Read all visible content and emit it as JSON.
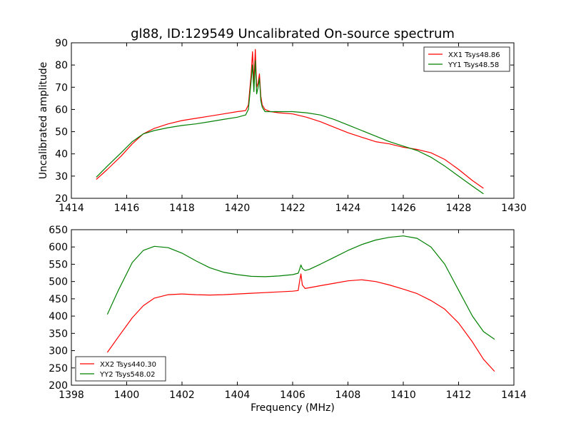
{
  "page_title": "gl88, ID:129549 Uncalibrated On-source spectrum",
  "chart_data": [
    {
      "type": "line",
      "title": "gl88, ID:129549 Uncalibrated On-source spectrum",
      "xlabel": "",
      "ylabel": "Uncalibrated amplitude",
      "xlim": [
        1414,
        1430
      ],
      "ylim": [
        20,
        90
      ],
      "xticks": [
        "1414",
        "1416",
        "1418",
        "1420",
        "1422",
        "1424",
        "1426",
        "1428",
        "1430"
      ],
      "yticks": [
        "20",
        "30",
        "40",
        "50",
        "60",
        "70",
        "80",
        "90"
      ],
      "grid": false,
      "legend_position": "top-right",
      "series": [
        {
          "name": "XX1 Tsys48.86",
          "color": "#ff0000",
          "x": [
            1414.9,
            1415.3,
            1415.8,
            1416.2,
            1416.6,
            1417.0,
            1417.5,
            1418.0,
            1418.5,
            1419.0,
            1419.5,
            1420.0,
            1420.3,
            1420.4,
            1420.5,
            1420.55,
            1420.6,
            1420.65,
            1420.7,
            1420.75,
            1420.8,
            1420.85,
            1420.9,
            1421.0,
            1421.2,
            1421.5,
            1422.0,
            1422.5,
            1423.0,
            1423.5,
            1424.0,
            1424.5,
            1425.0,
            1425.5,
            1426.0,
            1426.5,
            1427.0,
            1427.5,
            1428.0,
            1428.5,
            1428.9
          ],
          "y": [
            28.5,
            33,
            39,
            44.5,
            49,
            51.5,
            53.5,
            55,
            56,
            57,
            58,
            59,
            59.5,
            62,
            76,
            86,
            72,
            87,
            70,
            72,
            76,
            66,
            62,
            60,
            59,
            58.5,
            58,
            56.5,
            54.5,
            52,
            49.5,
            47.5,
            45.5,
            44.5,
            43,
            42,
            40.5,
            37.5,
            33,
            28,
            24.5
          ]
        },
        {
          "name": "YY1 Tsys48.58",
          "color": "#008000",
          "x": [
            1414.9,
            1415.3,
            1415.8,
            1416.2,
            1416.6,
            1417.0,
            1417.5,
            1418.0,
            1418.5,
            1419.0,
            1419.5,
            1420.0,
            1420.3,
            1420.4,
            1420.5,
            1420.55,
            1420.6,
            1420.65,
            1420.7,
            1420.75,
            1420.8,
            1420.85,
            1420.9,
            1421.0,
            1421.2,
            1421.5,
            1422.0,
            1422.5,
            1423.0,
            1423.5,
            1424.0,
            1424.5,
            1425.0,
            1425.5,
            1426.0,
            1426.5,
            1427.0,
            1427.5,
            1428.0,
            1428.5,
            1428.9
          ],
          "y": [
            29.5,
            34.5,
            40.5,
            45.5,
            49,
            50.5,
            51.8,
            52.8,
            53.5,
            54.5,
            55.5,
            56.5,
            57.5,
            60,
            73,
            80,
            68,
            82,
            67,
            70,
            74,
            64,
            61,
            59,
            59,
            59,
            59,
            58.5,
            57.5,
            55.5,
            53,
            50.5,
            48,
            45.5,
            43.5,
            41.5,
            38.5,
            34.5,
            30,
            25.5,
            22
          ]
        }
      ]
    },
    {
      "type": "line",
      "title": "",
      "xlabel": "Frequency (MHz)",
      "ylabel": "",
      "xlim": [
        1398,
        1414
      ],
      "ylim": [
        200,
        650
      ],
      "xticks": [
        "1398",
        "1400",
        "1402",
        "1404",
        "1406",
        "1408",
        "1410",
        "1412",
        "1414"
      ],
      "yticks": [
        "200",
        "250",
        "300",
        "350",
        "400",
        "450",
        "500",
        "550",
        "600",
        "650"
      ],
      "grid": false,
      "legend_position": "bottom-left",
      "series": [
        {
          "name": "XX2 Tsys440.30",
          "color": "#ff0000",
          "x": [
            1399.3,
            1399.7,
            1400.2,
            1400.6,
            1401.0,
            1401.5,
            1402.0,
            1402.5,
            1403.0,
            1403.5,
            1404.0,
            1404.5,
            1405.0,
            1405.5,
            1406.0,
            1406.2,
            1406.25,
            1406.3,
            1406.35,
            1406.45,
            1406.6,
            1407.0,
            1407.5,
            1408.0,
            1408.5,
            1409.0,
            1409.5,
            1410.0,
            1410.5,
            1411.0,
            1411.5,
            1412.0,
            1412.5,
            1412.9,
            1413.3
          ],
          "y": [
            295,
            340,
            395,
            430,
            452,
            462,
            464,
            462,
            461,
            462,
            464,
            466,
            468,
            470,
            472,
            474,
            500,
            522,
            490,
            480,
            482,
            488,
            495,
            502,
            505,
            500,
            490,
            478,
            465,
            445,
            420,
            380,
            325,
            275,
            240
          ]
        },
        {
          "name": "YY2 Tsys548.02",
          "color": "#008000",
          "x": [
            1399.3,
            1399.7,
            1400.2,
            1400.6,
            1401.0,
            1401.5,
            1402.0,
            1402.5,
            1403.0,
            1403.5,
            1404.0,
            1404.5,
            1405.0,
            1405.5,
            1406.0,
            1406.2,
            1406.25,
            1406.3,
            1406.35,
            1406.45,
            1406.6,
            1407.0,
            1407.5,
            1408.0,
            1408.5,
            1409.0,
            1409.5,
            1410.0,
            1410.5,
            1411.0,
            1411.5,
            1412.0,
            1412.5,
            1412.9,
            1413.3
          ],
          "y": [
            405,
            475,
            555,
            590,
            602,
            598,
            582,
            560,
            540,
            527,
            520,
            515,
            514,
            516,
            520,
            524,
            535,
            548,
            538,
            532,
            535,
            550,
            570,
            590,
            607,
            620,
            628,
            632,
            625,
            600,
            550,
            475,
            400,
            355,
            333
          ]
        }
      ]
    }
  ]
}
